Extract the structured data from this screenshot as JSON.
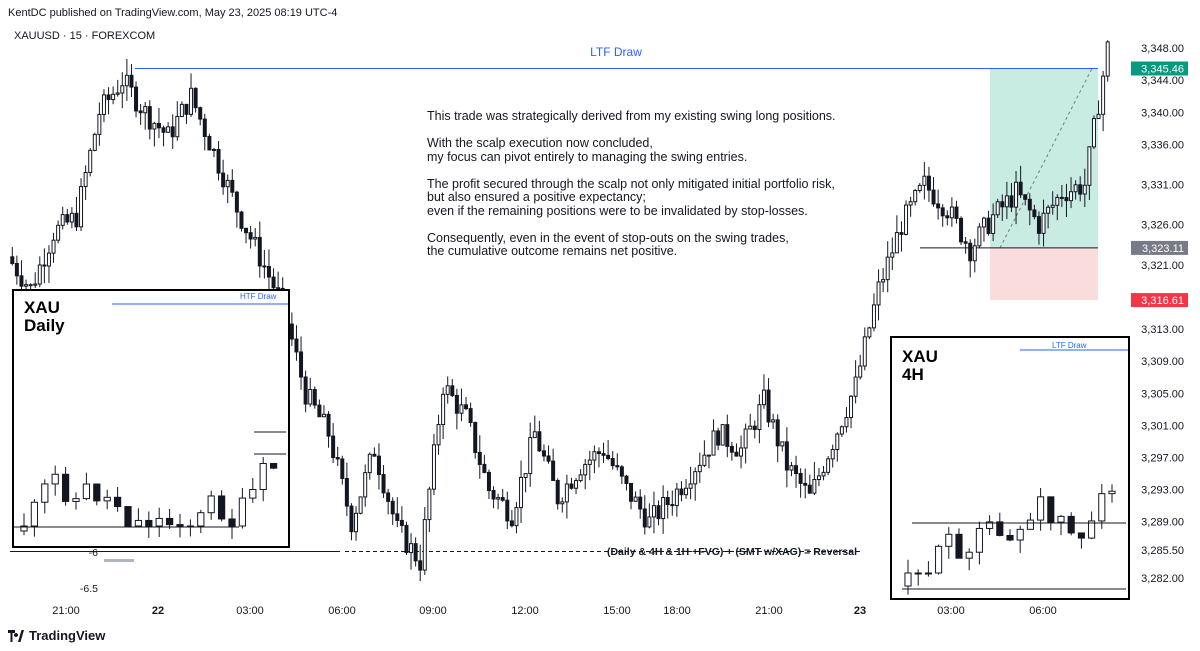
{
  "header": {
    "publisher": "KentDC published on TradingView.com, May 23, 2025 08:19 UTC-4",
    "symbol": "XAUUSD · 15 · FOREXCOM"
  },
  "footer": {
    "brand": "TradingView",
    "logo_icon": "tradingview-logo-icon"
  },
  "colors": {
    "up_body": "#ffffff",
    "down_body": "#131722",
    "wick": "#131722",
    "ltf_line": "#2962ff",
    "target_zone": "#c8ebe2",
    "stop_zone": "#fbdcdc",
    "price_green": "#089981",
    "price_gray": "#787b86",
    "price_red": "#f23645"
  },
  "annotations": {
    "ltf_draw": "LTF Draw",
    "reversal": "(Daily & 4H & 1H +FVG) + (SMT w/XAG) = Reversal",
    "level_a": "-6",
    "level_b": "-6.5",
    "note": "This trade was strategically derived from my existing swing long positions.\n\nWith the scalp execution now concluded,\nmy focus can pivot entirely to managing the swing entries.\n\nThe profit secured through the scalp not only mitigated initial portfolio risk,\nbut also ensured a positive expectancy;\neven if the remaining positions were to be invalidated by stop-losses.\n\nConsequently, even in the event of stop-outs on the swing trades,\nthe cumulative outcome remains net positive."
  },
  "insets": {
    "daily": {
      "title": "XAU\nDaily",
      "draw": "HTF Draw"
    },
    "h4": {
      "title": "XAU\n4H",
      "draw": "LTF Draw"
    }
  },
  "chart_data": {
    "type": "candlestick",
    "symbol": "XAUUSD",
    "interval": "15",
    "ylim": [
      3279.5,
      3351.5
    ],
    "y_ticks": [
      3282.0,
      3285.5,
      3289.0,
      3293.0,
      3297.0,
      3301.0,
      3305.0,
      3309.0,
      3313.0,
      3316.61,
      3321.0,
      3323.11,
      3326.0,
      3331.0,
      3336.0,
      3340.0,
      3344.0,
      3345.46,
      3348.0
    ],
    "y_tick_labels": [
      "3,282.00",
      "3,285.50",
      "3,289.00",
      "3,293.00",
      "3,297.00",
      "3,301.00",
      "3,305.00",
      "3,309.00",
      "3,313.00",
      "3,316.61",
      "3,321.00",
      "3,323.11",
      "3,326.00",
      "3,331.00",
      "3,336.00",
      "3,340.00",
      "3,344.00",
      "3,345.46",
      "3,348.00"
    ],
    "price_labels": [
      {
        "value": 3345.46,
        "label": "3,345.46",
        "style": "green"
      },
      {
        "value": 3323.11,
        "label": "3,323.11",
        "style": "gray"
      },
      {
        "value": 3316.61,
        "label": "3,316.61",
        "style": "red"
      }
    ],
    "x_ticks": [
      {
        "label": "21:00",
        "bold": false
      },
      {
        "label": "22",
        "bold": true
      },
      {
        "label": "03:00",
        "bold": false
      },
      {
        "label": "06:00",
        "bold": false
      },
      {
        "label": "09:00",
        "bold": false
      },
      {
        "label": "12:00",
        "bold": false
      },
      {
        "label": "15:00",
        "bold": false
      },
      {
        "label": "18:00",
        "bold": false
      },
      {
        "label": "21:00",
        "bold": false
      },
      {
        "label": "23",
        "bold": true
      },
      {
        "label": "03:00",
        "bold": false
      },
      {
        "label": "06:00",
        "bold": false
      }
    ],
    "key_levels": {
      "ltf_draw": 3345.46,
      "entry": 3323.11,
      "stop": 3316.61,
      "reversal_level": 3285.3
    },
    "anchors": [
      3322,
      3318,
      3325,
      3327,
      3340,
      3344,
      3340,
      3337,
      3342,
      3335,
      3328,
      3322,
      3316,
      3305,
      3300,
      3289,
      3298,
      3288,
      3284,
      3306,
      3302,
      3293,
      3290,
      3300,
      3292,
      3296,
      3298,
      3293,
      3289,
      3292,
      3296,
      3300,
      3298,
      3304,
      3296,
      3292,
      3299,
      3306,
      3318,
      3326,
      3331,
      3328,
      3323,
      3327,
      3330,
      3326,
      3330,
      3331,
      3348
    ],
    "candles": []
  }
}
